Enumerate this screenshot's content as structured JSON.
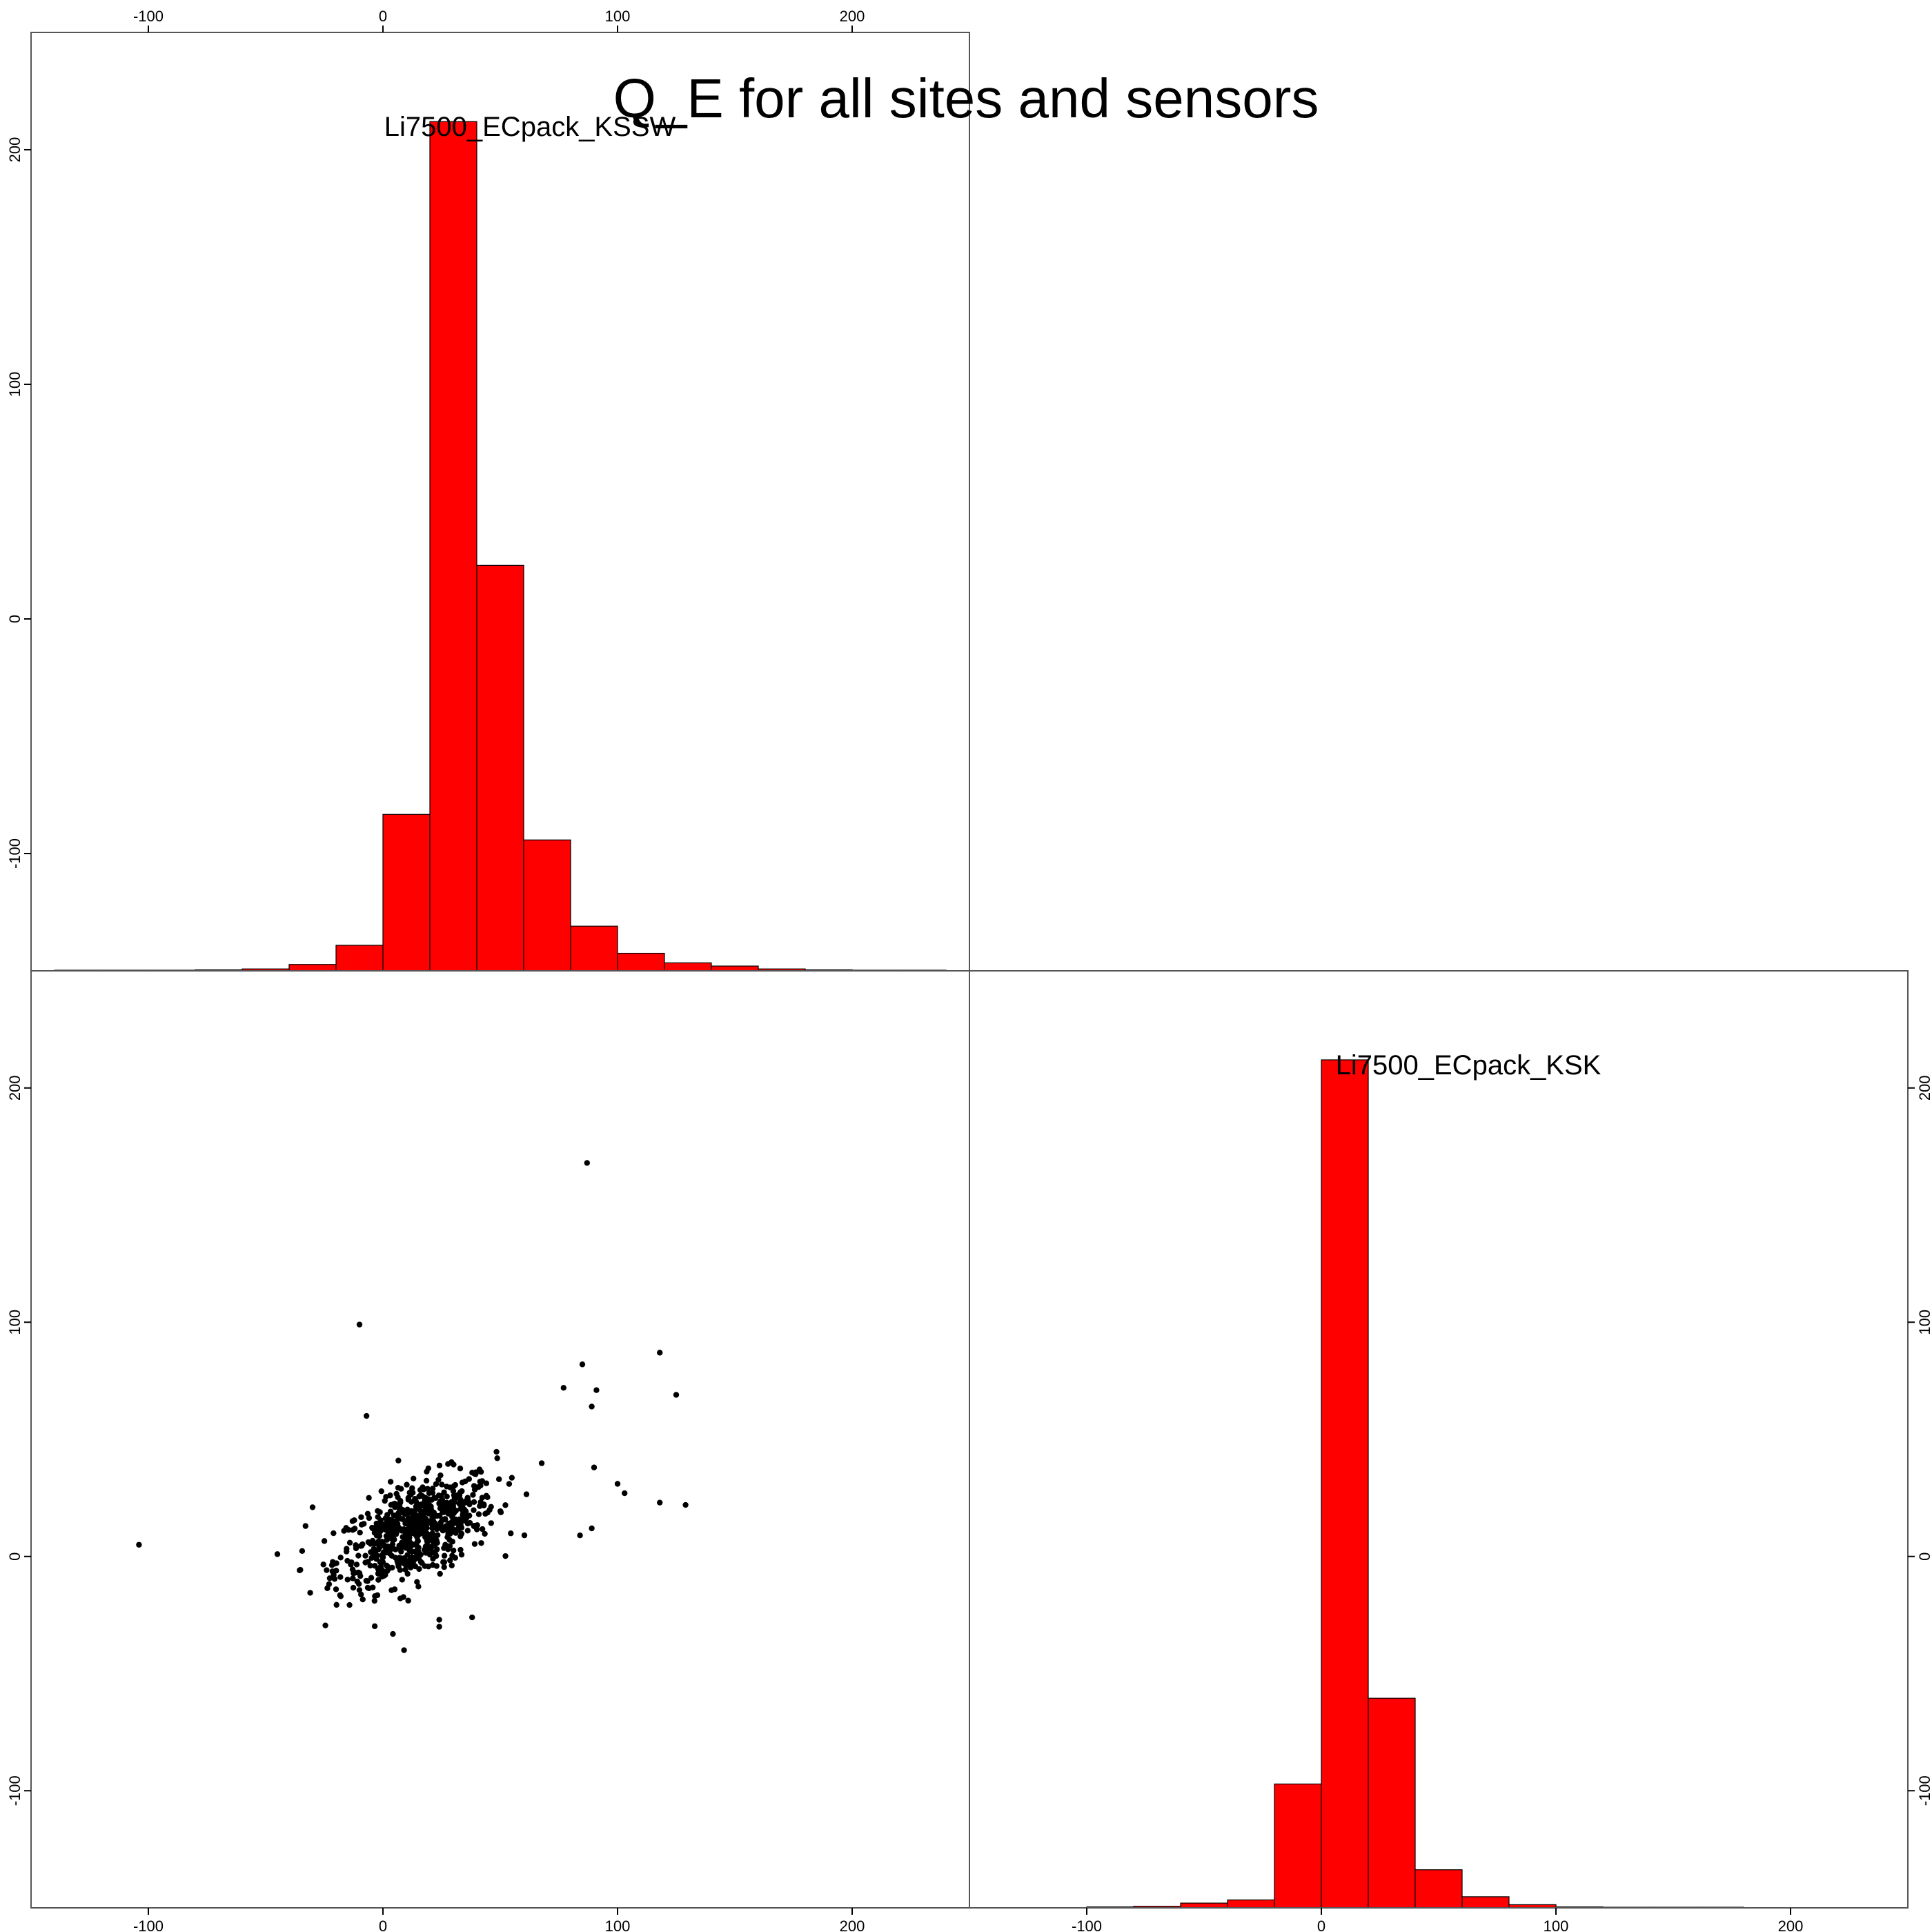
{
  "title": "Q_E for all sites and sensors",
  "colors": {
    "bar_fill": "#ff0000",
    "bar_stroke": "#000000",
    "point": "#000000",
    "frame": "#555555"
  },
  "chart_data": [
    {
      "type": "bar",
      "panel": "top-left",
      "title": "Li7500_ECpack_KSSW",
      "xlim": [
        -150,
        250
      ],
      "ylim": [
        -150,
        250
      ],
      "x_ticks": [
        -100,
        0,
        100,
        200
      ],
      "y_ticks": [
        -100,
        0,
        100,
        200
      ],
      "x_axis_side": "top",
      "y_axis_side": "left",
      "grid": false,
      "bin_edges": [
        -140,
        -120,
        -100,
        -80,
        -60,
        -40,
        -20,
        0,
        20,
        40,
        60,
        80,
        100,
        120,
        140,
        160,
        180,
        200,
        220,
        240
      ],
      "counts": [
        0.2,
        0.2,
        0.2,
        0.3,
        0.6,
        2,
        8,
        49,
        266,
        127,
        41,
        14,
        5.5,
        2.5,
        1.5,
        0.6,
        0.3,
        0.2,
        0.2
      ]
    },
    {
      "type": "bar",
      "panel": "bottom-right",
      "title": "Li7500_ECpack_KSK",
      "xlim": [
        -150,
        250
      ],
      "ylim": [
        -150,
        250
      ],
      "x_ticks": [
        -100,
        0,
        100,
        200
      ],
      "y_ticks": [
        -100,
        0,
        100,
        200
      ],
      "x_axis_side": "bottom",
      "y_axis_side": "right",
      "grid": false,
      "bin_edges": [
        -100,
        -80,
        -60,
        -40,
        -20,
        0,
        20,
        40,
        60,
        80,
        100,
        120,
        140,
        160,
        180
      ],
      "counts": [
        0.3,
        0.5,
        1.5,
        2.5,
        39,
        267,
        66,
        12,
        3.5,
        1,
        0.3,
        0.2,
        0.2,
        0.2
      ]
    },
    {
      "type": "scatter",
      "panel": "bottom-left",
      "xlim": [
        -150,
        250
      ],
      "ylim": [
        -150,
        250
      ],
      "x_ticks": [
        -100,
        0,
        100,
        200
      ],
      "y_ticks": [
        -100,
        0,
        100,
        200
      ],
      "x_axis_side": "bottom",
      "y_axis_side": "left",
      "grid": false,
      "outliers": [
        [
          -104,
          5
        ],
        [
          -45,
          1
        ],
        [
          -10,
          99
        ],
        [
          -7,
          60
        ],
        [
          87,
          168
        ],
        [
          85,
          82
        ],
        [
          118,
          87
        ],
        [
          77,
          72
        ],
        [
          91,
          71
        ],
        [
          125,
          69
        ],
        [
          89,
          64
        ],
        [
          100,
          31
        ],
        [
          103,
          27
        ],
        [
          90,
          38
        ],
        [
          118,
          23
        ],
        [
          129,
          22
        ],
        [
          84,
          9
        ],
        [
          89,
          12
        ],
        [
          9,
          -40
        ],
        [
          24,
          -30
        ],
        [
          24,
          -27
        ],
        [
          38,
          -26
        ],
        [
          -20,
          -14
        ],
        [
          -18,
          -17
        ],
        [
          5,
          -14
        ],
        [
          -33,
          13
        ],
        [
          -30,
          21
        ]
      ],
      "cluster": {
        "center": [
          14,
          11
        ],
        "spread": [
          17,
          12
        ],
        "correlation": 0.55,
        "count": 700
      }
    }
  ]
}
